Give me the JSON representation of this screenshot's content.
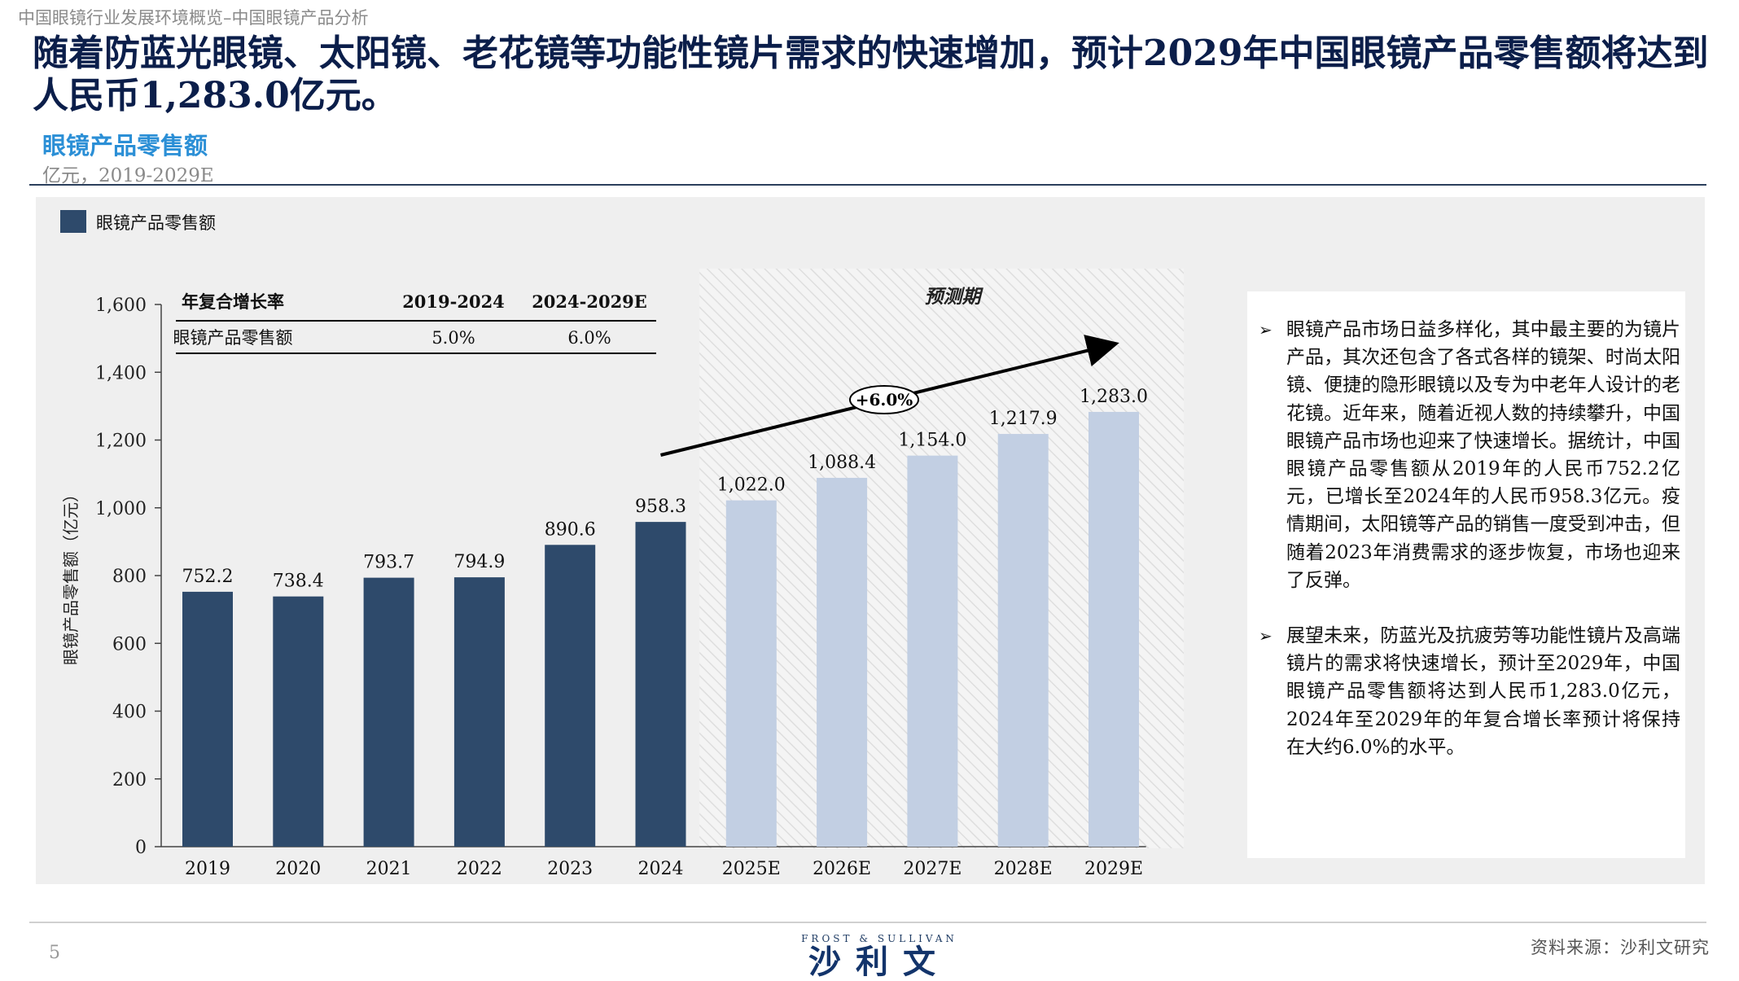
{
  "breadcrumb": "中国眼镜行业发展环境概览–中国眼镜产品分析",
  "headline": "随着防蓝光眼镜、太阳镜、老花镜等功能性镜片需求的快速增加，预计2029年中国眼镜产品零售额将达到人民币1,283.0亿元。",
  "chart_title": "眼镜产品零售额",
  "chart_subtitle": "亿元，2019-2029E",
  "chart_data": {
    "type": "bar",
    "categories": [
      "2019",
      "2020",
      "2021",
      "2022",
      "2023",
      "2024",
      "2025E",
      "2026E",
      "2027E",
      "2028E",
      "2029E"
    ],
    "series": [
      {
        "name": "眼镜产品零售额",
        "values": [
          752.2,
          738.4,
          793.7,
          794.9,
          890.6,
          958.3,
          1022.0,
          1088.4,
          1154.0,
          1217.9,
          1283.0
        ]
      }
    ],
    "value_labels": [
      "752.2",
      "738.4",
      "793.7",
      "794.9",
      "890.6",
      "958.3",
      "1,022.0",
      "1,088.4",
      "1,154.0",
      "1,217.9",
      "1,283.0"
    ],
    "ylabel": "眼镜产品零售额（亿元）",
    "ylim": [
      0,
      1600
    ],
    "yticks": [
      0,
      200,
      400,
      600,
      800,
      1000,
      1200,
      1400,
      1600
    ],
    "ytick_labels": [
      "0",
      "200",
      "400",
      "600",
      "800",
      "1,000",
      "1,200",
      "1,400",
      "1,600"
    ],
    "forecast_start_index": 6,
    "forecast_label": "预测期",
    "cagr_arrow_label": "+6.0%",
    "legend": "top-left",
    "colors": {
      "historical": "#2e4a6b",
      "forecast": "#c2cfe3"
    }
  },
  "cagr_table": {
    "header": [
      "年复合增长率",
      "2019-2024",
      "2024-2029E"
    ],
    "rows": [
      [
        "眼镜产品零售额",
        "5.0%",
        "6.0%"
      ]
    ]
  },
  "bullets": [
    "眼镜产品市场日益多样化，其中最主要的为镜片产品，其次还包含了各式各样的镜架、时尚太阳镜、便捷的隐形眼镜以及专为中老年人设计的老花镜。近年来，随着近视人数的持续攀升，中国眼镜产品市场也迎来了快速增长。据统计，中国眼镜产品零售额从2019年的人民币752.2亿元，已增长至2024年的人民币958.3亿元。疫情期间，太阳镜等产品的销售一度受到冲击，但随着2023年消费需求的逐步恢复，市场也迎来了反弹。",
    "展望未来，防蓝光及抗疲劳等功能性镜片及高端镜片的需求将快速增长，预计至2029年，中国眼镜产品零售额将达到人民币1,283.0亿元，2024年至2029年的年复合增长率预计将保持在大约6.0%的水平。"
  ],
  "footer": {
    "page_number": "5",
    "logo_en": "FROST & SULLIVAN",
    "logo_cn": "沙利文",
    "source": "资料来源：沙利文研究"
  }
}
